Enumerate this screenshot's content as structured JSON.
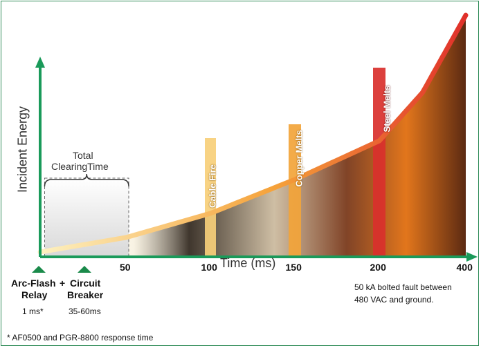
{
  "colors": {
    "frame": "#2e8b57",
    "axis": "#1a9a5a",
    "curve_start": "#fdf1c0",
    "curve_mid": "#f5a23a",
    "curve_end": "#e0302a",
    "cable_fire_band": "#f7cf7a",
    "copper_band": "#f2a43a",
    "steel_band": "#d9302c"
  },
  "chart_data": {
    "type": "area",
    "xlabel": "Time (ms)",
    "ylabel": "Incident Energy",
    "x_ticks": [
      "50",
      "100",
      "150",
      "200",
      "400"
    ],
    "series": [
      {
        "x": [
          0,
          50,
          100,
          150,
          200,
          300,
          400
        ],
        "y": [
          0.02,
          0.08,
          0.18,
          0.32,
          0.48,
          0.68,
          1.0
        ]
      }
    ],
    "ylim": [
      0,
      1
    ],
    "markers": [
      {
        "x": 100,
        "label": "Cable Fire"
      },
      {
        "x": 150,
        "label": "Copper Melts"
      },
      {
        "x": 200,
        "label": "Steel Melts"
      }
    ],
    "clearing_time": {
      "label_line1": "Total",
      "label_line2": "ClearingTime",
      "start": 1,
      "end": 50
    }
  },
  "devices": {
    "relay": {
      "name_line1": "Arc-Flash",
      "name_line2": "Relay",
      "time": "1 ms*"
    },
    "plus": "+",
    "breaker": {
      "name_line1": "Circuit",
      "name_line2": "Breaker",
      "time": "35-60ms"
    }
  },
  "note": {
    "line1": "50 kA bolted fault between",
    "line2": "480 VAC and ground."
  },
  "footnote": "* AF0500 and PGR-8800 response time"
}
